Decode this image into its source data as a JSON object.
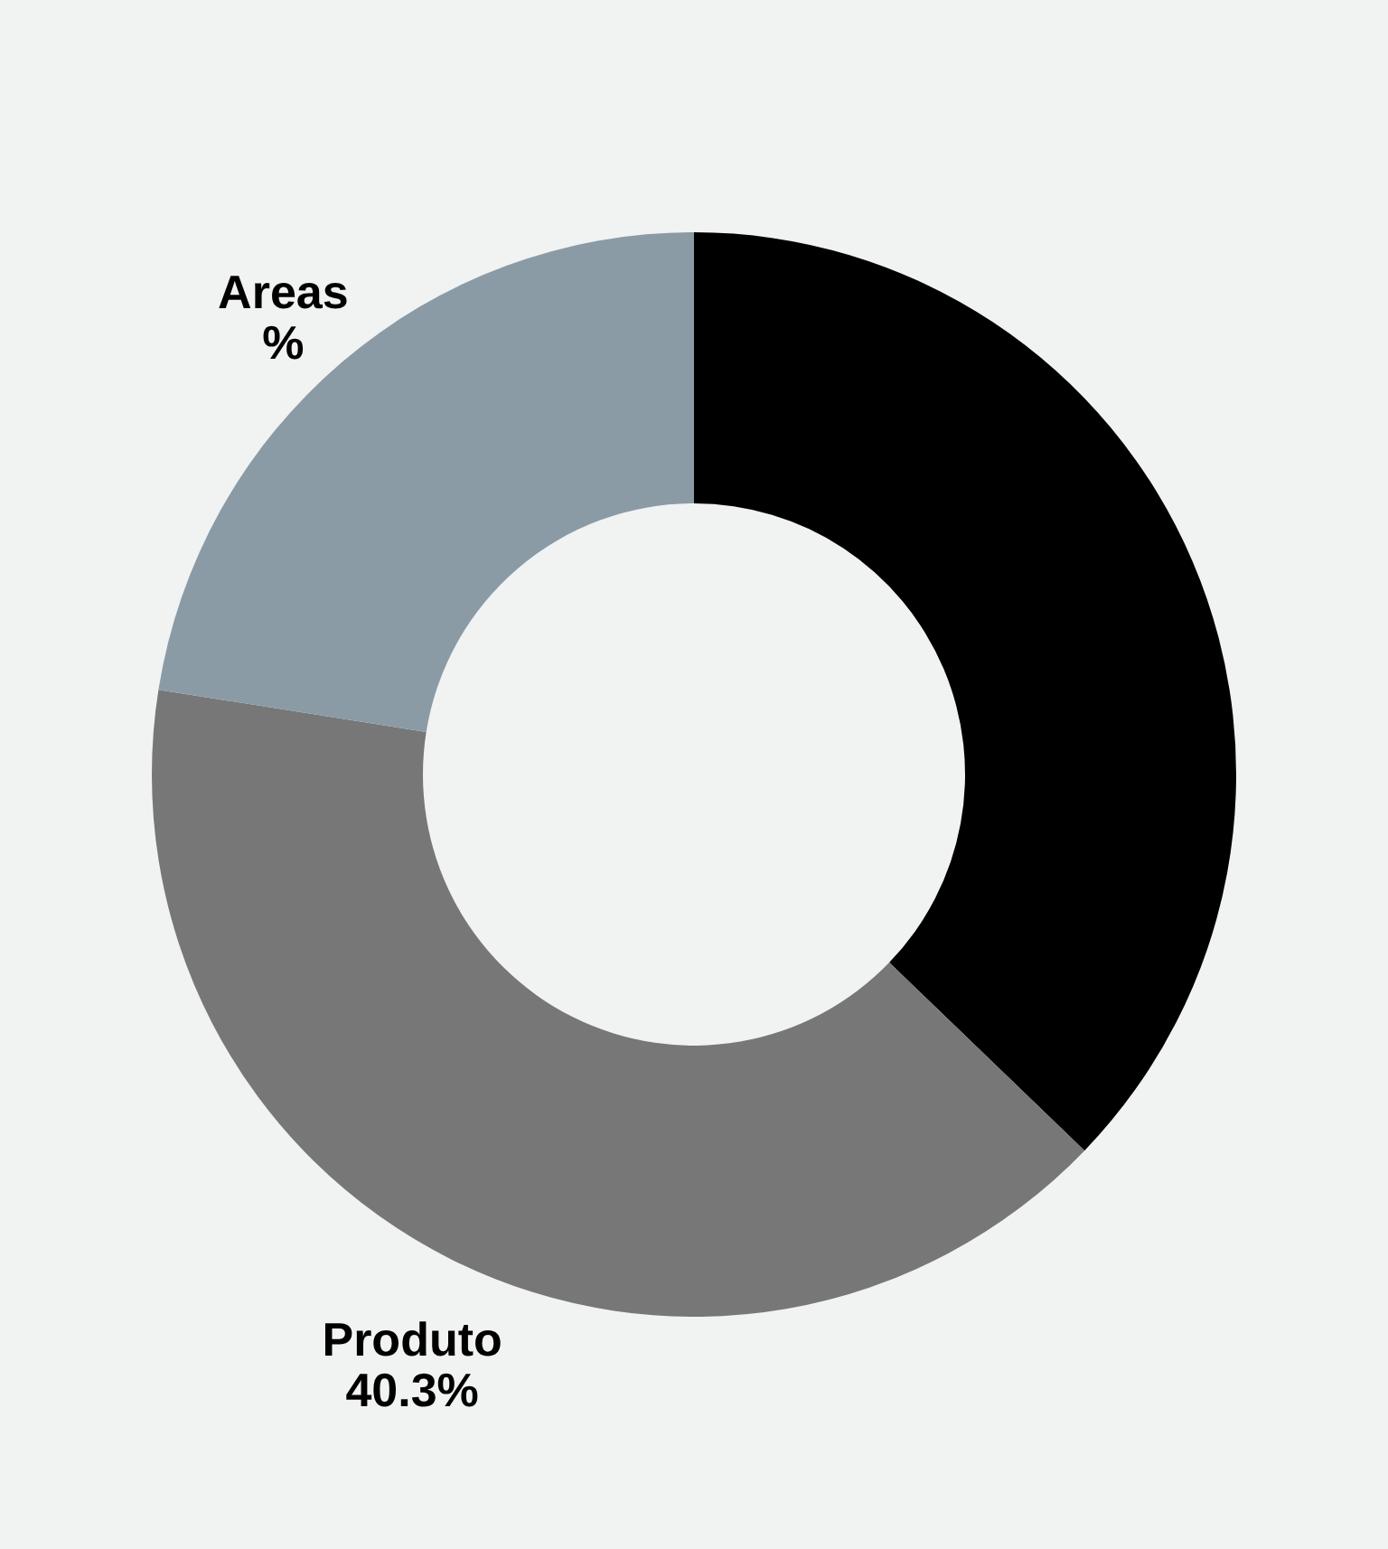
{
  "chart_data": {
    "type": "donut",
    "categories": [
      null,
      "Produto",
      "Areas"
    ],
    "values": [
      37.2,
      40.3,
      22.5
    ],
    "value_labels": [
      null,
      "40.3%",
      "%"
    ],
    "colors": [
      "#000000",
      "#777777",
      "#8a9ba6"
    ],
    "legend": false
  }
}
